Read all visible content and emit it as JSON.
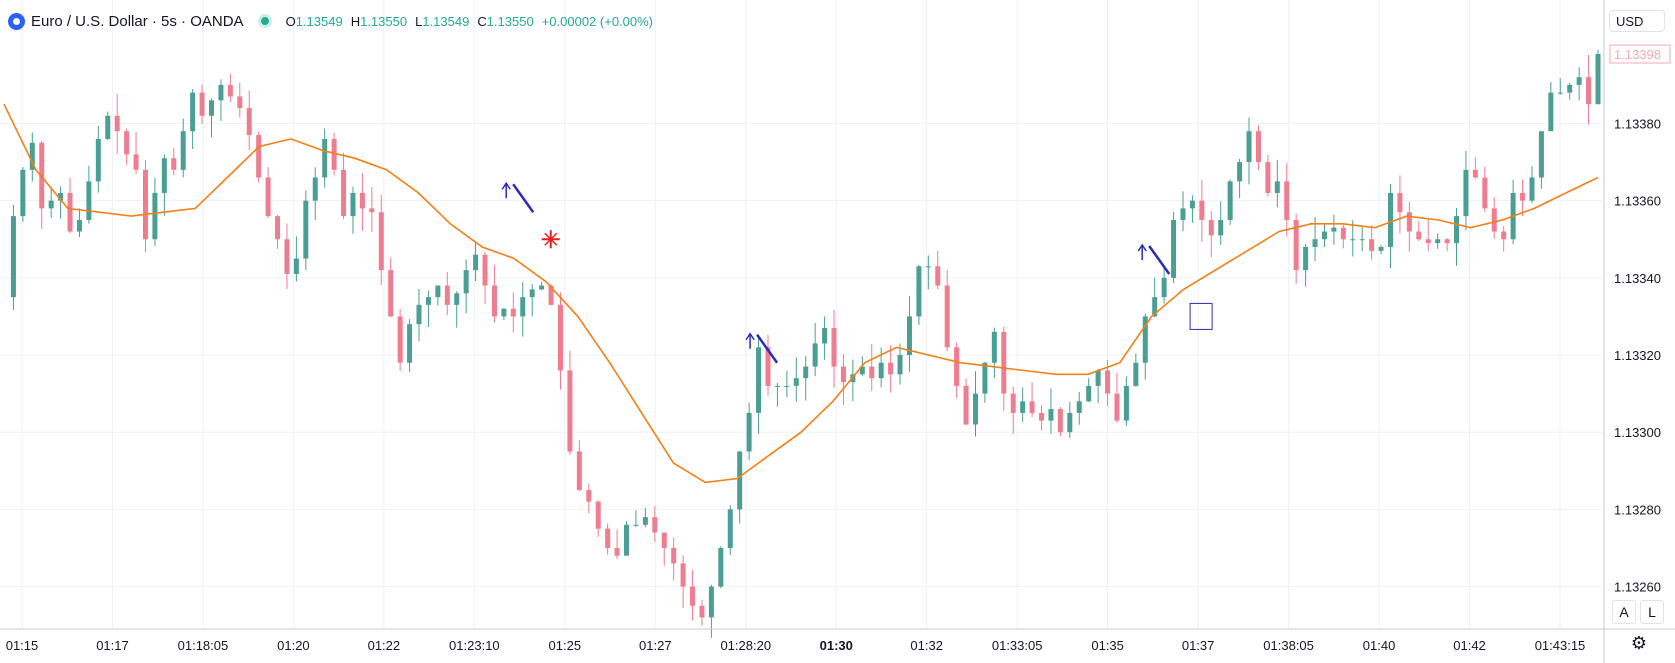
{
  "header": {
    "symbol_title": "Euro / U.S. Dollar · 5s · OANDA",
    "ohlc": {
      "o_label": "O",
      "o": "1.13549",
      "h_label": "H",
      "h": "1.13550",
      "l_label": "L",
      "l": "1.13549",
      "c_label": "C",
      "c": "1.13550",
      "change": "+0.00002 (+0.00%)"
    }
  },
  "price_scale": {
    "currency": "USD",
    "last_price": "1.13398",
    "auto_label": "A",
    "log_label": "L"
  },
  "colors": {
    "up": "#4b9e93",
    "down": "#f07c8f",
    "ma": "#f57f17",
    "grid": "#eef1f5",
    "marker": "#2b2bbf",
    "cross": "#e91e1e",
    "price_tag": "#f7a8b4"
  },
  "icons": {
    "settings": "gear-icon",
    "symbol": "symbol-icon",
    "live": "live-dot-icon"
  },
  "chart_data": {
    "type": "candlestick",
    "xlabels": [
      "01:15",
      "01:17",
      "01:18:05",
      "01:20",
      "01:22",
      "01:23:10",
      "01:25",
      "01:27",
      "01:28:20",
      "01:30",
      "01:32",
      "01:33:05",
      "01:35",
      "01:37",
      "01:38:05",
      "01:40",
      "01:42",
      "01:43:15"
    ],
    "xlabels_bold": [
      "01:30"
    ],
    "yticks": [
      "1.13380",
      "1.13360",
      "1.13340",
      "1.13320",
      "1.13300",
      "1.13280",
      "1.13260"
    ],
    "ylim": [
      1.13249,
      1.13412
    ],
    "close_path": [
      1.13335,
      1.13356,
      1.13368,
      1.13375,
      1.13358,
      1.1336,
      1.13362,
      1.13352,
      1.13355,
      1.13365,
      1.13376,
      1.13382,
      1.13378,
      1.13372,
      1.13368,
      1.1335,
      1.13362,
      1.13371,
      1.13368,
      1.13378,
      1.13388,
      1.13382,
      1.13386,
      1.1339,
      1.13387,
      1.13384,
      1.13377,
      1.13366,
      1.13356,
      1.1335,
      1.13341,
      1.13345,
      1.1336,
      1.13366,
      1.13376,
      1.13368,
      1.13356,
      1.13362,
      1.13358,
      1.13357,
      1.13342,
      1.1333,
      1.13318,
      1.13328,
      1.13333,
      1.13335,
      1.13338,
      1.13333,
      1.13336,
      1.13342,
      1.13346,
      1.13338,
      1.1333,
      1.13332,
      1.1333,
      1.13335,
      1.13337,
      1.13338,
      1.13333,
      1.13316,
      1.13295,
      1.13285,
      1.13282,
      1.13275,
      1.1327,
      1.13268,
      1.13276,
      1.13276,
      1.13278,
      1.13274,
      1.1327,
      1.13266,
      1.1326,
      1.13255,
      1.13252,
      1.1326,
      1.1327,
      1.1328,
      1.13295,
      1.13305,
      1.13322,
      1.13312,
      1.13312,
      1.13312,
      1.13314,
      1.13317,
      1.13323,
      1.13327,
      1.13317,
      1.13313,
      1.13315,
      1.13317,
      1.13314,
      1.13318,
      1.13315,
      1.1332,
      1.1333,
      1.13343,
      1.13343,
      1.13338,
      1.13322,
      1.13312,
      1.13302,
      1.1331,
      1.13318,
      1.13326,
      1.1331,
      1.13305,
      1.13308,
      1.13305,
      1.13303,
      1.13306,
      1.133,
      1.13305,
      1.13308,
      1.13312,
      1.13316,
      1.1331,
      1.13303,
      1.13312,
      1.13318,
      1.1333,
      1.13335,
      1.1334,
      1.13355,
      1.13358,
      1.1336,
      1.13355,
      1.13351,
      1.13355,
      1.13365,
      1.1337,
      1.13378,
      1.1337,
      1.13362,
      1.13365,
      1.13355,
      1.13342,
      1.13348,
      1.1335,
      1.13352,
      1.13353,
      1.1335,
      1.1335,
      1.1335,
      1.13347,
      1.13348,
      1.13362,
      1.13357,
      1.13352,
      1.1335,
      1.13349,
      1.1335,
      1.13349,
      1.13356,
      1.13368,
      1.13366,
      1.13358,
      1.13352,
      1.1335,
      1.13362,
      1.1336,
      1.13366,
      1.13378,
      1.13388,
      1.13388,
      1.1339,
      1.13392,
      1.13385,
      1.13398
    ],
    "ma": {
      "name": "",
      "x": [
        0,
        0.02,
        0.04,
        0.06,
        0.08,
        0.1,
        0.12,
        0.14,
        0.16,
        0.18,
        0.2,
        0.22,
        0.24,
        0.26,
        0.28,
        0.3,
        0.32,
        0.34,
        0.36,
        0.38,
        0.4,
        0.42,
        0.44,
        0.46,
        0.48,
        0.5,
        0.52,
        0.54,
        0.56,
        0.58,
        0.6,
        0.62,
        0.64,
        0.66,
        0.68,
        0.7,
        0.72,
        0.74,
        0.76,
        0.78,
        0.8,
        0.82,
        0.84,
        0.86,
        0.88,
        0.9,
        0.92,
        0.94,
        0.96,
        0.98,
        1
      ],
      "values": [
        1.13385,
        1.13368,
        1.13358,
        1.13357,
        1.13356,
        1.13357,
        1.13358,
        1.13366,
        1.13374,
        1.13376,
        1.13373,
        1.13371,
        1.13368,
        1.13362,
        1.13354,
        1.13348,
        1.13345,
        1.13339,
        1.1333,
        1.13318,
        1.13305,
        1.13292,
        1.13287,
        1.13288,
        1.13294,
        1.133,
        1.13308,
        1.13318,
        1.13322,
        1.1332,
        1.13318,
        1.13317,
        1.13316,
        1.13315,
        1.13315,
        1.13318,
        1.1333,
        1.13337,
        1.13342,
        1.13347,
        1.13352,
        1.13354,
        1.13354,
        1.13353,
        1.13356,
        1.13355,
        1.13353,
        1.13355,
        1.13358,
        1.13362,
        1.13366
      ]
    },
    "markers": [
      {
        "kind": "arrow-up",
        "t": 0.332,
        "price": 1.13357
      },
      {
        "kind": "arrow-up",
        "t": 0.485,
        "price": 1.13318
      },
      {
        "kind": "arrow-up",
        "t": 0.731,
        "price": 1.13341
      }
    ],
    "cross": {
      "t": 0.343,
      "price": 1.1335
    },
    "box": {
      "t": 0.751,
      "price": 1.1333
    }
  }
}
